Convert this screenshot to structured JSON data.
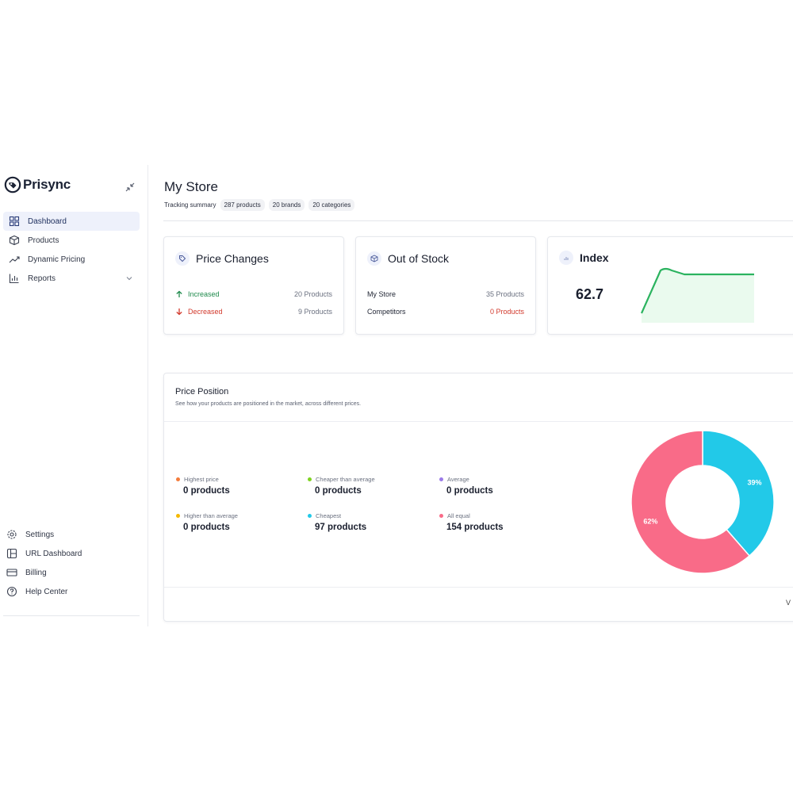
{
  "brand": {
    "name": "Prisync"
  },
  "sidebar": {
    "items": [
      {
        "label": "Dashboard",
        "icon": "grid-icon",
        "active": true
      },
      {
        "label": "Products",
        "icon": "box-icon"
      },
      {
        "label": "Dynamic Pricing",
        "icon": "trend-icon"
      },
      {
        "label": "Reports",
        "icon": "bar-chart-icon"
      }
    ],
    "bottom_items": [
      {
        "label": "Settings",
        "icon": "gear-icon"
      },
      {
        "label": "URL Dashboard",
        "icon": "layout-icon"
      },
      {
        "label": "Billing",
        "icon": "credit-card-icon"
      },
      {
        "label": "Help Center",
        "icon": "help-icon"
      }
    ]
  },
  "header": {
    "title": "My Store",
    "tracking_label": "Tracking summary",
    "chips": [
      "287 products",
      "20 brands",
      "20 categories"
    ]
  },
  "price_changes": {
    "title": "Price Changes",
    "increased_label": "Increased",
    "increased_value": "20 Products",
    "decreased_label": "Decreased",
    "decreased_value": "9 Products"
  },
  "out_of_stock": {
    "title": "Out of Stock",
    "my_store_label": "My Store",
    "my_store_value": "35 Products",
    "competitors_label": "Competitors",
    "competitors_value": "0 Products"
  },
  "index": {
    "title": "Index",
    "value": "62.7"
  },
  "price_position": {
    "title": "Price Position",
    "subtitle": "See how your products are positioned in the market, across different prices.",
    "view_link": "V",
    "legend": [
      {
        "label": "Highest price",
        "value": "0 products",
        "color": "#f47c3c"
      },
      {
        "label": "Cheaper than average",
        "value": "0 products",
        "color": "#7ed321"
      },
      {
        "label": "Average",
        "value": "0 products",
        "color": "#9b7be8"
      },
      {
        "label": "Higher than average",
        "value": "0 products",
        "color": "#f5b800"
      },
      {
        "label": "Cheapest",
        "value": "97 products",
        "color": "#22c9e8"
      },
      {
        "label": "All equal",
        "value": "154 products",
        "color": "#f96b88"
      }
    ]
  },
  "chart_data": {
    "type": "pie",
    "slices": [
      {
        "label": "Cheapest",
        "value": 39,
        "display": "39%",
        "color": "#22c9e8"
      },
      {
        "label": "All equal",
        "value": 62,
        "display": "62%",
        "color": "#f96b88"
      }
    ]
  }
}
